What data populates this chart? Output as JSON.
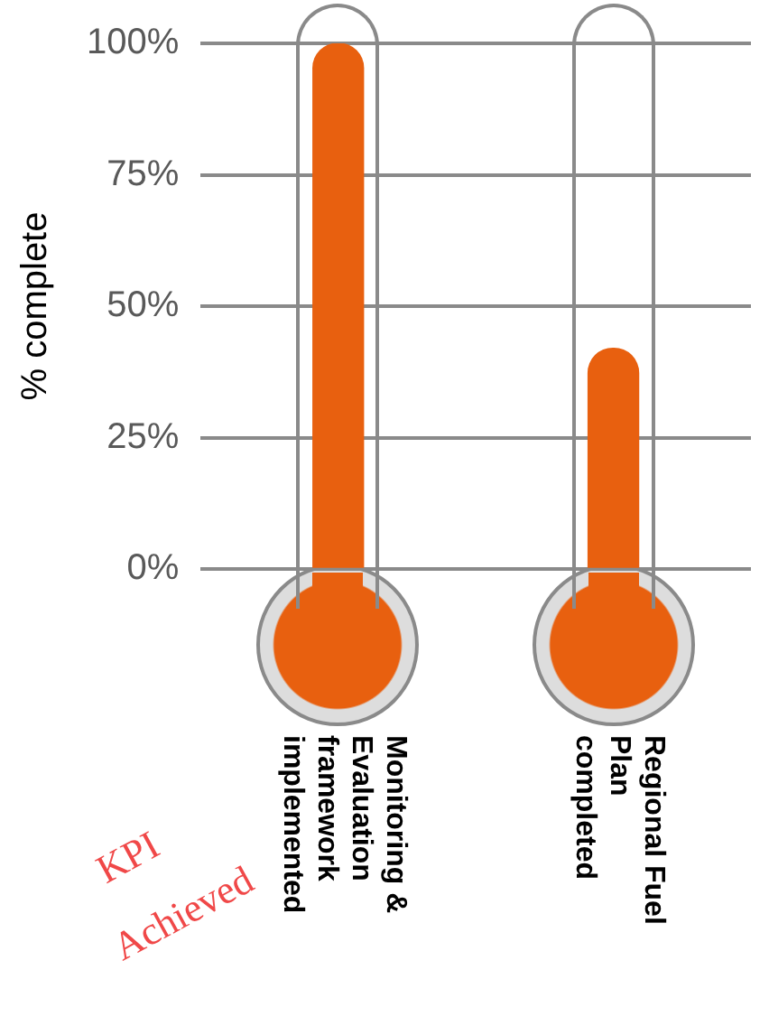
{
  "chart_data": {
    "type": "bar",
    "ylabel": "% complete",
    "categories": [
      "Monitoring & Evaluation framework implemented",
      "Regional Fuel Plan completed"
    ],
    "values": [
      100,
      42
    ],
    "color": "#e8600f",
    "ylim": [
      0,
      100
    ],
    "yticks": [
      {
        "value": 0,
        "label": "0%"
      },
      {
        "value": 25,
        "label": "25%"
      },
      {
        "value": 50,
        "label": "50%"
      },
      {
        "value": 75,
        "label": "75%"
      },
      {
        "value": 100,
        "label": "100%"
      }
    ],
    "grid": "y",
    "annotations": [
      "KPI Achieved"
    ]
  }
}
